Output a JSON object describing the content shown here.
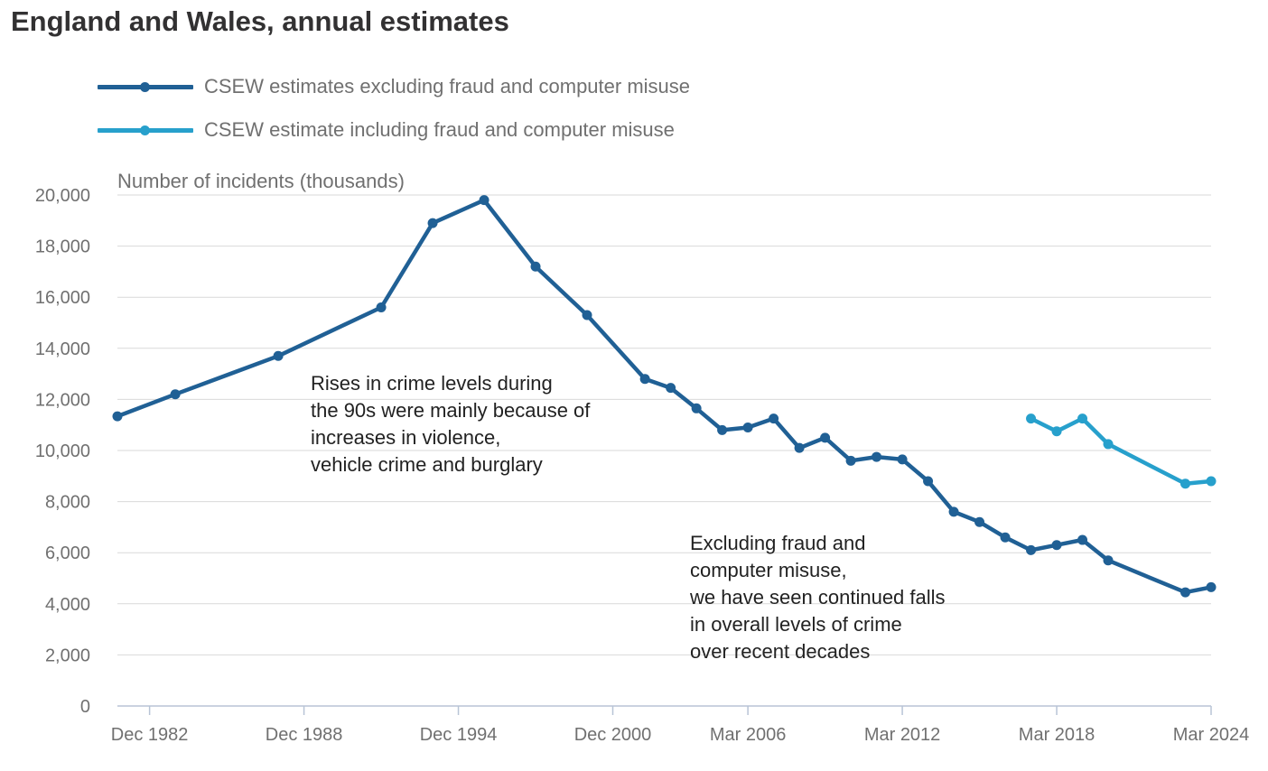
{
  "chart_data": {
    "type": "line",
    "title": "England and Wales, annual estimates",
    "ylabel": "Number of incidents (thousands)",
    "ylim": [
      0,
      20000
    ],
    "yticks": [
      0,
      2000,
      4000,
      6000,
      8000,
      10000,
      12000,
      14000,
      16000,
      18000,
      20000
    ],
    "ytick_labels": [
      "0",
      "2,000",
      "4,000",
      "6,000",
      "8,000",
      "10,000",
      "12,000",
      "14,000",
      "16,000",
      "18,000",
      "20,000"
    ],
    "xlim": [
      "Sep 1981",
      "Mar 2024"
    ],
    "xticks": [
      "Dec 1982",
      "Dec 1988",
      "Dec 1994",
      "Dec 2000",
      "Mar 2006",
      "Mar 2012",
      "Mar 2018",
      "Mar 2024"
    ],
    "grid": "horizontal",
    "legend_position": "top-left",
    "series": [
      {
        "name": "CSEW estimates excluding fraud and computer misuse",
        "color": "#206095",
        "points": [
          [
            "Sep 1981",
            11340
          ],
          [
            "Dec 1983",
            12200
          ],
          [
            "Dec 1987",
            13700
          ],
          [
            "Dec 1991",
            15600
          ],
          [
            "Dec 1993",
            18900
          ],
          [
            "Dec 1995",
            19800
          ],
          [
            "Dec 1997",
            17200
          ],
          [
            "Dec 1999",
            15300
          ],
          [
            "Mar 2002",
            12800
          ],
          [
            "Mar 2003",
            12450
          ],
          [
            "Mar 2004",
            11650
          ],
          [
            "Mar 2005",
            10800
          ],
          [
            "Mar 2006",
            10900
          ],
          [
            "Mar 2007",
            11250
          ],
          [
            "Mar 2008",
            10100
          ],
          [
            "Mar 2009",
            10500
          ],
          [
            "Mar 2010",
            9600
          ],
          [
            "Mar 2011",
            9750
          ],
          [
            "Mar 2012",
            9650
          ],
          [
            "Mar 2013",
            8800
          ],
          [
            "Mar 2014",
            7600
          ],
          [
            "Mar 2015",
            7200
          ],
          [
            "Mar 2016",
            6600
          ],
          [
            "Mar 2017",
            6100
          ],
          [
            "Mar 2018",
            6300
          ],
          [
            "Mar 2019",
            6500
          ],
          [
            "Mar 2020",
            5700
          ],
          [
            "Mar 2023",
            4450
          ],
          [
            "Mar 2024",
            4650
          ]
        ]
      },
      {
        "name": "CSEW estimate including fraud and computer misuse",
        "color": "#27a0cc",
        "points": [
          [
            "Mar 2017",
            11250
          ],
          [
            "Mar 2018",
            10750
          ],
          [
            "Mar 2019",
            11250
          ],
          [
            "Mar 2020",
            10250
          ],
          [
            "Mar 2023",
            8700
          ],
          [
            "Mar 2024",
            8800
          ]
        ]
      }
    ],
    "annotations": [
      {
        "lines": [
          "Rises in crime levels during",
          "the 90s were mainly because of",
          "increases in violence,",
          "vehicle crime and burglary"
        ]
      },
      {
        "lines": [
          "Excluding fraud and",
          "computer misuse,",
          "we have seen continued falls",
          "in overall levels of crime",
          "over recent decades"
        ]
      }
    ]
  }
}
